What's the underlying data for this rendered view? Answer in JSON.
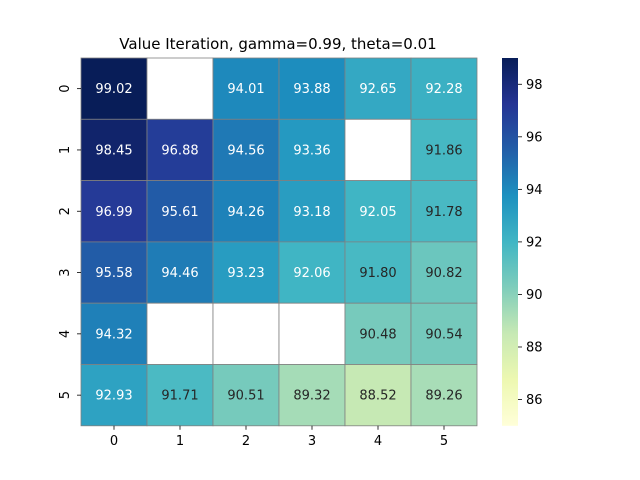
{
  "chart_data": {
    "type": "heatmap",
    "title": "Value Iteration, gamma=0.99, theta=0.01",
    "xlabel": "",
    "ylabel": "",
    "x_tick_labels": [
      "0",
      "1",
      "2",
      "3",
      "4",
      "5"
    ],
    "y_tick_labels": [
      "0",
      "1",
      "2",
      "3",
      "4",
      "5"
    ],
    "values": [
      [
        99.02,
        null,
        94.01,
        93.88,
        92.65,
        92.28
      ],
      [
        98.45,
        96.88,
        94.56,
        93.36,
        null,
        91.86
      ],
      [
        96.99,
        95.61,
        94.26,
        93.18,
        92.05,
        91.78
      ],
      [
        95.58,
        94.46,
        93.23,
        92.06,
        91.8,
        90.82
      ],
      [
        94.32,
        null,
        null,
        null,
        90.48,
        90.54
      ],
      [
        92.93,
        91.71,
        90.51,
        89.32,
        88.52,
        89.26
      ]
    ],
    "value_format": "2 decimals",
    "colormap": "YlGnBu",
    "colorbar": {
      "range": [
        85,
        99
      ],
      "ticks": [
        86,
        88,
        90,
        92,
        94,
        96,
        98
      ],
      "tick_labels": [
        "86",
        "88",
        "90",
        "92",
        "94",
        "96",
        "98"
      ]
    },
    "missing_cell_color": "#ffffff",
    "grid": true,
    "cell_edge_color": "#808080"
  }
}
